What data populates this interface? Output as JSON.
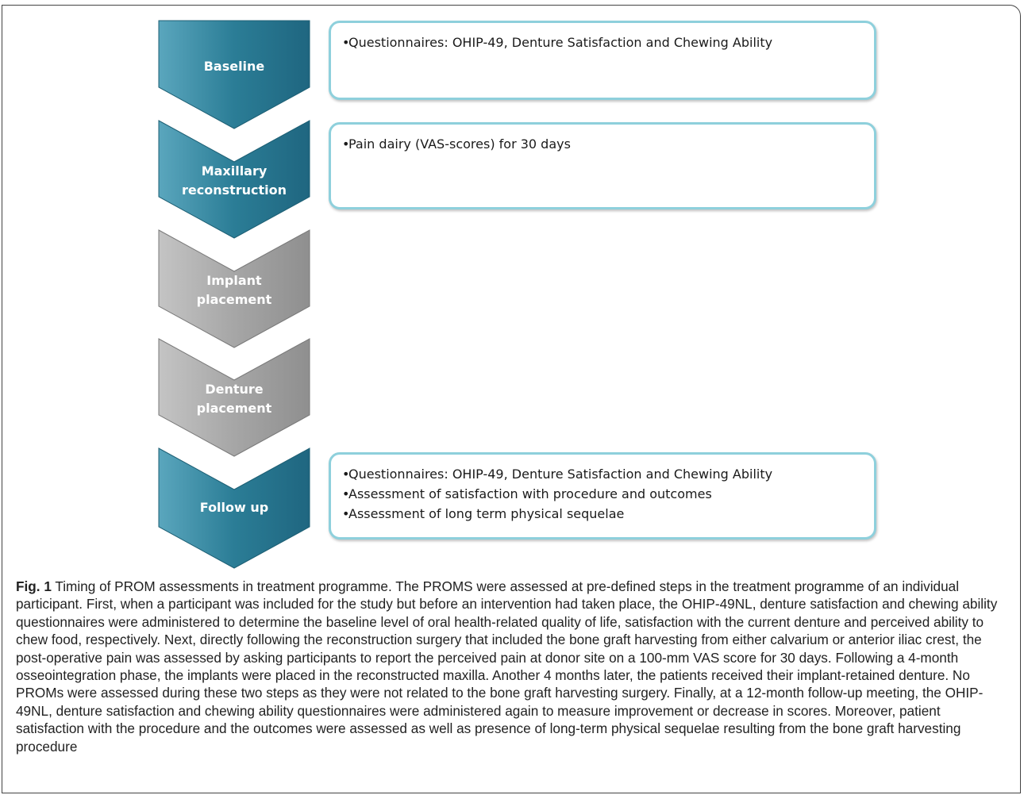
{
  "steps": [
    {
      "label_line1": "Baseline",
      "label_line2": "",
      "status": "active"
    },
    {
      "label_line1": "Maxillary",
      "label_line2": "reconstruction",
      "status": "active"
    },
    {
      "label_line1": "Implant",
      "label_line2": "placement",
      "status": "inactive"
    },
    {
      "label_line1": "Denture",
      "label_line2": "placement",
      "status": "inactive"
    },
    {
      "label_line1": "Follow up",
      "label_line2": "",
      "status": "active"
    }
  ],
  "boxes": {
    "baseline": [
      "Questionnaires: OHIP-49, Denture Satisfaction and Chewing Ability"
    ],
    "reconstruction": [
      "Pain dairy (VAS-scores) for 30 days"
    ],
    "followup": [
      "Questionnaires: OHIP-49, Denture Satisfaction and Chewing Ability",
      "Assessment of satisfaction with procedure and outcomes",
      "Assessment of long term physical sequelae"
    ]
  },
  "bullet_char": "•",
  "colors": {
    "active": "#2b7d96",
    "inactive": "#a6a6a6",
    "box_border": "#8ed0dc"
  },
  "caption": {
    "fig_label": "Fig. 1",
    "text": " Timing of PROM assessments in treatment programme. The PROMS were assessed at pre-defined steps in the treatment programme of an individual participant. First, when a participant was included for the study but before an intervention had taken place, the OHIP-49NL, denture satisfaction and chewing ability questionnaires were administered to determine the baseline level of oral health-related quality of life, satisfaction with the current denture and perceived ability to chew food, respectively. Next, directly following the reconstruction surgery that included the bone graft harvesting from either calvarium or anterior iliac crest, the post-operative pain was assessed by asking participants to report the perceived pain at donor site on a 100-mm VAS score for 30 days. Following a 4-month osseointegration phase, the implants were placed in the reconstructed maxilla. Another 4 months later, the patients received their implant-retained denture. No PROMs were assessed during these two steps as they were not related to the bone graft harvesting surgery. Finally, at a 12-month follow-up meeting, the OHIP-49NL, denture satisfaction and chewing ability questionnaires were administered again to measure improvement or decrease in scores. Moreover, patient satisfaction with the procedure and the outcomes were assessed as well as presence of long-term physical sequelae resulting from the bone graft harvesting procedure"
  }
}
